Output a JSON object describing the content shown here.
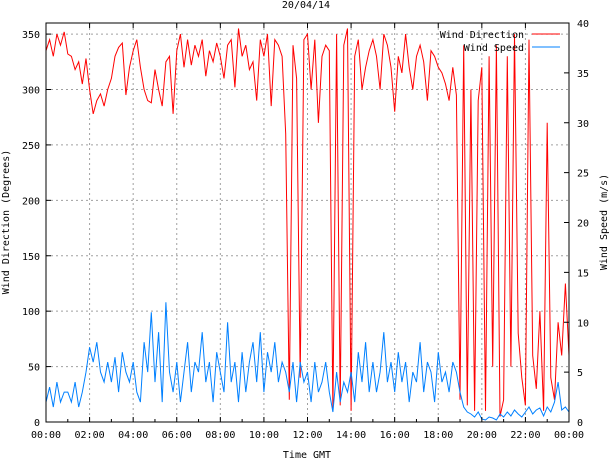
{
  "chart_data": {
    "type": "line",
    "title": "20/04/14",
    "xlabel": "Time GMT",
    "ylabel": "Wind Direction (Degrees)",
    "y2label": "Wind Speed (m/s)",
    "xlim": [
      0,
      24
    ],
    "ylim": [
      0,
      360
    ],
    "y2lim": [
      0,
      40
    ],
    "grid": true,
    "legend_position": "top-right",
    "x_ticks": [
      "00:00",
      "02:00",
      "04:00",
      "06:00",
      "08:00",
      "10:00",
      "12:00",
      "14:00",
      "16:00",
      "18:00",
      "20:00",
      "22:00",
      "00:00"
    ],
    "y_ticks": [
      0,
      50,
      100,
      150,
      200,
      250,
      300,
      350
    ],
    "y2_ticks": [
      0,
      5,
      10,
      15,
      20,
      25,
      30,
      35,
      40
    ],
    "x_step_minutes": 10,
    "series": [
      {
        "name": "Wind Direction",
        "axis": "y",
        "color": "#ff0000",
        "values": [
          335,
          345,
          330,
          350,
          340,
          352,
          332,
          330,
          318,
          325,
          305,
          328,
          300,
          278,
          290,
          296,
          285,
          300,
          310,
          330,
          338,
          342,
          295,
          320,
          335,
          345,
          320,
          300,
          290,
          288,
          318,
          300,
          285,
          325,
          330,
          278,
          335,
          350,
          320,
          345,
          322,
          340,
          330,
          345,
          312,
          335,
          325,
          342,
          330,
          310,
          340,
          345,
          302,
          355,
          330,
          340,
          318,
          325,
          290,
          345,
          330,
          350,
          285,
          345,
          340,
          330,
          260,
          20,
          340,
          310,
          40,
          345,
          350,
          300,
          345,
          270,
          330,
          340,
          335,
          10,
          350,
          15,
          340,
          355,
          10,
          330,
          345,
          300,
          320,
          335,
          345,
          330,
          300,
          350,
          340,
          320,
          280,
          330,
          315,
          350,
          320,
          300,
          330,
          340,
          325,
          290,
          335,
          330,
          320,
          315,
          305,
          290,
          320,
          295,
          20,
          340,
          15,
          300,
          10,
          290,
          320,
          10,
          330,
          50,
          340,
          5,
          20,
          330,
          50,
          350,
          80,
          40,
          15,
          345,
          60,
          30,
          100,
          10,
          270,
          40,
          20,
          90,
          60,
          125,
          60
        ]
      },
      {
        "name": "Wind Speed",
        "axis": "y2",
        "color": "#0080ff",
        "values": [
          2,
          3.5,
          1.5,
          4,
          2,
          3,
          3,
          2,
          4,
          1.5,
          3,
          5,
          7.5,
          6,
          8,
          5,
          4,
          6,
          4,
          6.5,
          3,
          7,
          5,
          4,
          6,
          3,
          2,
          8,
          5,
          11,
          4,
          9,
          2,
          12,
          5,
          3,
          6,
          2,
          5,
          8,
          3,
          6,
          5,
          9,
          4,
          6,
          2,
          7,
          5,
          3,
          10,
          4,
          6,
          2,
          7,
          3,
          6,
          8,
          4,
          9,
          3,
          7,
          5,
          8,
          4,
          6,
          5,
          3,
          6,
          2,
          6,
          4,
          5,
          2,
          6,
          3,
          4,
          6,
          3,
          1,
          5,
          2,
          4,
          3,
          5,
          2,
          7,
          4,
          8,
          3,
          6,
          3,
          5,
          9,
          4,
          6,
          3,
          7,
          4,
          6,
          2,
          5,
          4,
          8,
          3,
          6,
          5,
          2,
          7,
          4,
          5,
          3,
          6,
          5,
          3,
          1.5,
          1,
          0.8,
          0.5,
          1,
          0.3,
          0.2,
          0.5,
          0.4,
          0.2,
          0.8,
          0.5,
          1,
          0.6,
          1.2,
          0.8,
          0.5,
          1,
          1.5,
          0.8,
          1.2,
          1.4,
          0.6,
          1.5,
          1,
          2,
          4,
          1.2,
          1.5,
          1
        ]
      }
    ]
  }
}
